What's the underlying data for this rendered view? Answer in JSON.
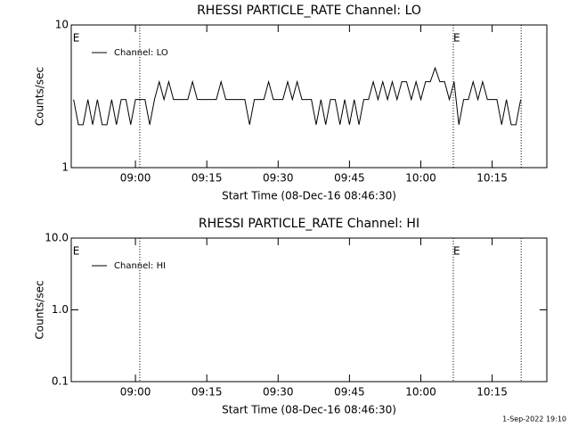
{
  "chart_data": [
    {
      "type": "line",
      "title": "RHESSI PARTICLE_RATE Channel: LO",
      "xlabel": "Start Time (08-Dec-16 08:46:30)",
      "ylabel": "Counts/sec",
      "log_y": true,
      "legend": "upper left",
      "xlim": [
        "08:46:30",
        "10:26:30"
      ],
      "ylim": [
        1,
        10
      ],
      "xticks": [
        "09:00",
        "09:15",
        "09:30",
        "09:45",
        "10:00",
        "10:15"
      ],
      "yticks": [
        1,
        10
      ],
      "vlines": [
        "09:00:54",
        "10:06:50",
        "10:21:06"
      ],
      "annotations": [
        {
          "text": "E",
          "x": "08:46:50"
        },
        {
          "text": "E",
          "x": "10:06:50"
        }
      ],
      "x": [
        "08:47",
        "08:48",
        "08:49",
        "08:50",
        "08:51",
        "08:52",
        "08:53",
        "08:54",
        "08:55",
        "08:56",
        "08:57",
        "08:58",
        "08:59",
        "09:00",
        "09:01",
        "09:02",
        "09:03",
        "09:04",
        "09:05",
        "09:06",
        "09:07",
        "09:08",
        "09:09",
        "09:10",
        "09:11",
        "09:12",
        "09:13",
        "09:14",
        "09:15",
        "09:16",
        "09:17",
        "09:18",
        "09:19",
        "09:20",
        "09:21",
        "09:22",
        "09:23",
        "09:24",
        "09:25",
        "09:26",
        "09:27",
        "09:28",
        "09:29",
        "09:30",
        "09:31",
        "09:32",
        "09:33",
        "09:34",
        "09:35",
        "09:36",
        "09:37",
        "09:38",
        "09:39",
        "09:40",
        "09:41",
        "09:42",
        "09:43",
        "09:44",
        "09:45",
        "09:46",
        "09:47",
        "09:48",
        "09:49",
        "09:50",
        "09:51",
        "09:52",
        "09:53",
        "09:54",
        "09:55",
        "09:56",
        "09:57",
        "09:58",
        "09:59",
        "10:00",
        "10:01",
        "10:02",
        "10:03",
        "10:04",
        "10:05",
        "10:06",
        "10:07",
        "10:08",
        "10:09",
        "10:10",
        "10:11",
        "10:12",
        "10:13",
        "10:14",
        "10:15",
        "10:16",
        "10:17",
        "10:18",
        "10:19",
        "10:20",
        "10:21"
      ],
      "series": [
        {
          "name": "Channel: LO",
          "color": "#000000",
          "values": [
            3,
            2,
            2,
            3,
            2,
            3,
            2,
            2,
            3,
            2,
            3,
            3,
            2,
            3,
            3,
            3,
            2,
            3,
            4,
            3,
            4,
            3,
            3,
            3,
            3,
            4,
            3,
            3,
            3,
            3,
            3,
            4,
            3,
            3,
            3,
            3,
            3,
            2,
            3,
            3,
            3,
            4,
            3,
            3,
            3,
            4,
            3,
            4,
            3,
            3,
            3,
            2,
            3,
            2,
            3,
            3,
            2,
            3,
            2,
            3,
            2,
            3,
            3,
            4,
            3,
            4,
            3,
            4,
            3,
            4,
            4,
            3,
            4,
            3,
            4,
            4,
            5,
            4,
            4,
            3,
            4,
            2,
            3,
            3,
            4,
            3,
            4,
            3,
            3,
            3,
            2,
            3,
            2,
            2,
            3
          ]
        }
      ]
    },
    {
      "type": "line",
      "title": "RHESSI PARTICLE_RATE Channel: HI",
      "xlabel": "Start Time (08-Dec-16 08:46:30)",
      "ylabel": "Counts/sec",
      "log_y": true,
      "legend": "upper left",
      "xlim": [
        "08:46:30",
        "10:26:30"
      ],
      "ylim": [
        0.1,
        10
      ],
      "xticks": [
        "09:00",
        "09:15",
        "09:30",
        "09:45",
        "10:00",
        "10:15"
      ],
      "yticks": [
        0.1,
        {
          "value": 1,
          "label": "1.0"
        },
        {
          "value": 10,
          "label": "10.0"
        }
      ],
      "vlines": [
        "09:00:54",
        "10:06:50",
        "10:21:06"
      ],
      "annotations": [
        {
          "text": "E",
          "x": "08:46:50"
        },
        {
          "text": "E",
          "x": "10:06:50"
        }
      ],
      "x": [],
      "series": [
        {
          "name": "Channel: HI",
          "color": "#000000",
          "values": []
        }
      ]
    }
  ],
  "footer": "1-Sep-2022 19:10"
}
